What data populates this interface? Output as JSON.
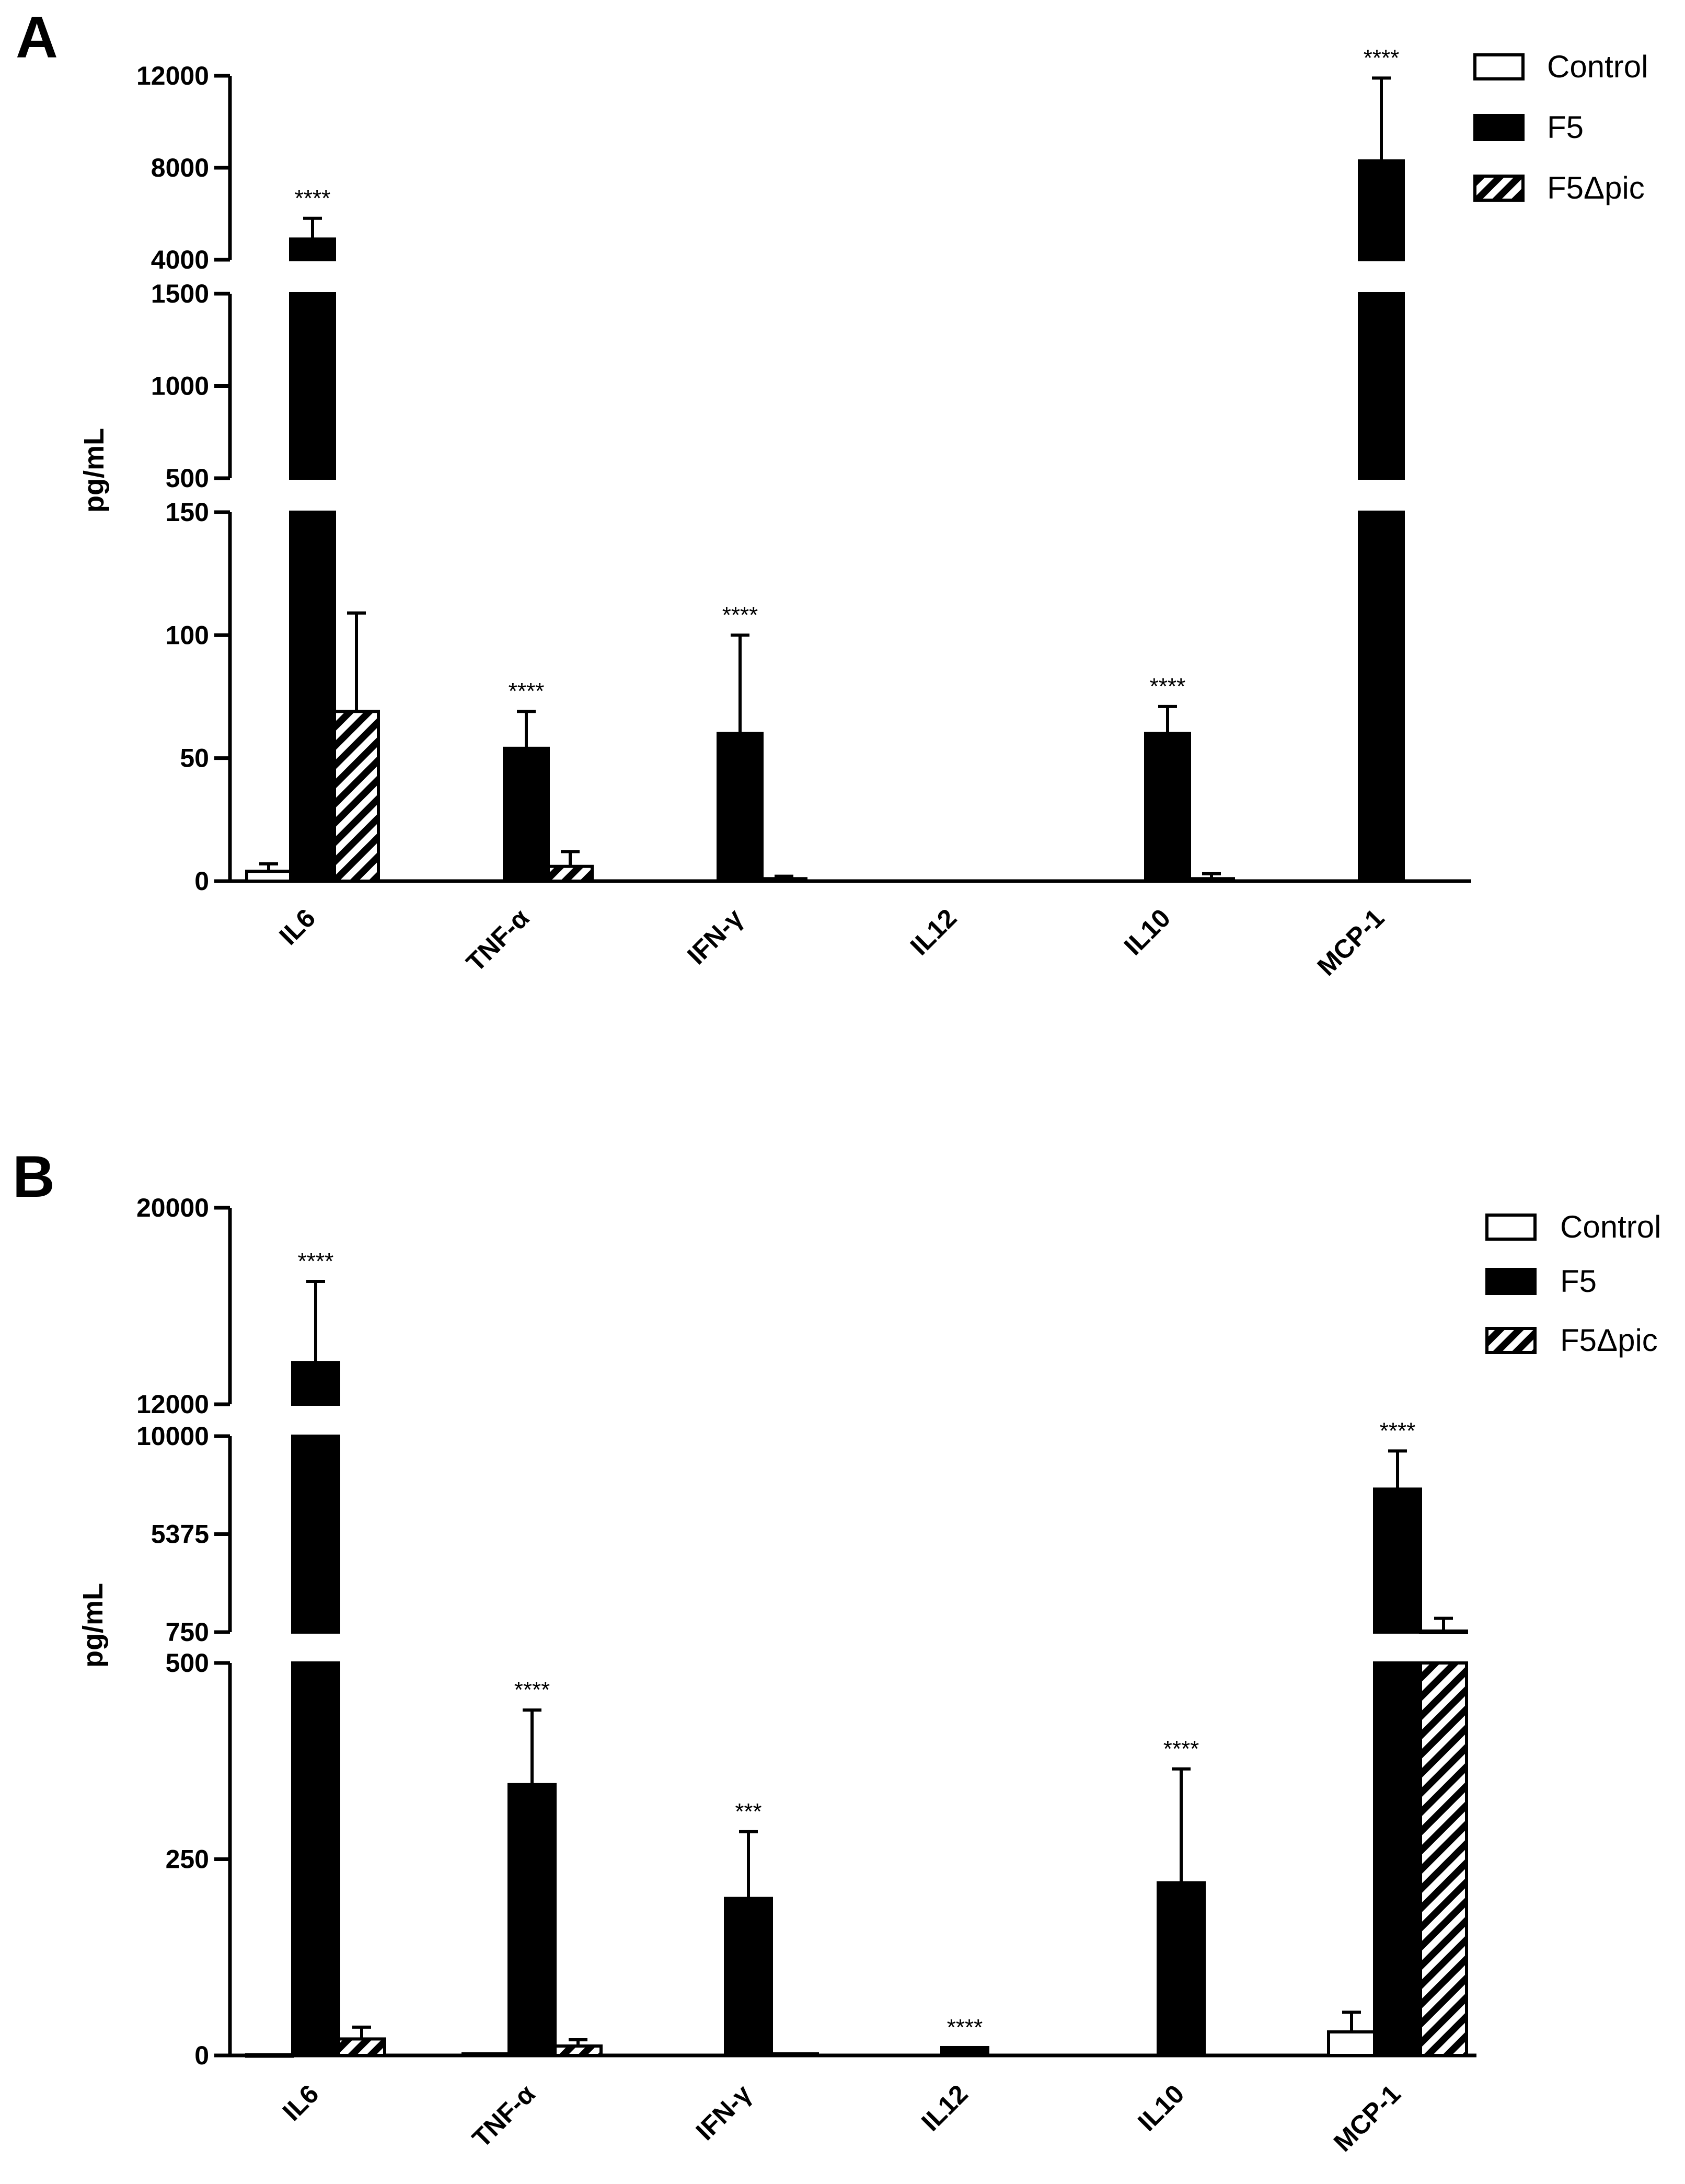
{
  "colors": {
    "control": "#ffffff",
    "F5": "#000000",
    "F5dpic": "hatch"
  },
  "chart_data": [
    {
      "panel": "A",
      "type": "bar",
      "ylabel": "pg/mL",
      "categories": [
        "IL6",
        "TNF-α",
        "IFN-γ",
        "IL12",
        "IL10",
        "MCP-1"
      ],
      "legend": [
        "Control",
        "F5",
        "F5Δpic"
      ],
      "series": [
        {
          "name": "Control",
          "values": [
            4,
            0,
            0,
            0,
            0,
            0
          ],
          "errors": [
            3,
            0,
            0,
            0,
            0,
            0
          ]
        },
        {
          "name": "F5",
          "values": [
            4900,
            54,
            60,
            0,
            60,
            8300
          ],
          "errors": [
            900,
            15,
            40,
            0,
            11,
            3600
          ]
        },
        {
          "name": "F5Δpic",
          "values": [
            69,
            6,
            1,
            0,
            1,
            0
          ],
          "errors": [
            40,
            6,
            1,
            0,
            2,
            0
          ]
        }
      ],
      "significance": [
        "****",
        "****",
        "****",
        "",
        "****",
        "****"
      ],
      "segments": [
        {
          "range": [
            0,
            150
          ],
          "ticks": [
            0,
            50,
            100,
            150
          ]
        },
        {
          "range": [
            500,
            1500
          ],
          "ticks": [
            500,
            1000,
            1500
          ]
        },
        {
          "range": [
            4000,
            12000
          ],
          "ticks": [
            4000,
            8000,
            12000
          ]
        }
      ]
    },
    {
      "panel": "B",
      "type": "bar",
      "ylabel": "pg/mL",
      "categories": [
        "IL6",
        "TNF-α",
        "IFN-γ",
        "IL12",
        "IL10",
        "MCP-1"
      ],
      "legend": [
        "Control",
        "F5",
        "F5Δpic"
      ],
      "series": [
        {
          "name": "Control",
          "values": [
            1,
            2,
            0,
            0,
            0,
            30
          ],
          "errors": [
            0,
            0,
            0,
            0,
            0,
            25
          ]
        },
        {
          "name": "F5",
          "values": [
            13700,
            345,
            200,
            10,
            220,
            7500
          ],
          "errors": [
            3300,
            95,
            85,
            0,
            145,
            1800
          ]
        },
        {
          "name": "F5Δpic",
          "values": [
            21,
            12,
            2,
            0,
            0,
            800
          ],
          "errors": [
            15,
            8,
            0,
            0,
            0,
            600
          ]
        }
      ],
      "significance": [
        "****",
        "****",
        "***",
        "****",
        "****",
        "****"
      ],
      "segments": [
        {
          "range": [
            0,
            500
          ],
          "ticks": [
            0,
            250,
            500
          ]
        },
        {
          "range": [
            750,
            10000
          ],
          "ticks": [
            750,
            5375,
            10000
          ]
        },
        {
          "range": [
            12000,
            20000
          ],
          "ticks": [
            12000,
            20000
          ]
        }
      ]
    }
  ]
}
